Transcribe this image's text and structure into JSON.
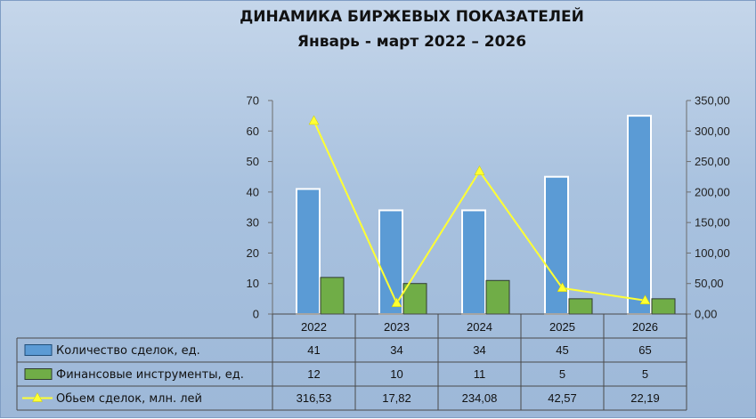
{
  "chart_data": {
    "type": "bar",
    "title": "ДИНАМИКА БИРЖЕВЫХ ПОКАЗАТЕЛЕЙ",
    "subtitle": "Январь -  март 2022 – 2026",
    "categories": [
      "2022",
      "2023",
      "2024",
      "2025",
      "2026"
    ],
    "y_left": {
      "min": 0,
      "max": 70,
      "ticks": [
        "0",
        "10",
        "20",
        "30",
        "40",
        "50",
        "60",
        "70"
      ]
    },
    "y_right": {
      "min": 0,
      "max": 350,
      "ticks": [
        "0,00",
        "50,00",
        "100,00",
        "150,00",
        "200,00",
        "250,00",
        "300,00",
        "350,00"
      ]
    },
    "grid": false,
    "legend": "data-table",
    "series": [
      {
        "name": "Количество сделок, ед.",
        "type": "bar",
        "axis": "left",
        "color": "#5b9bd5",
        "values": [
          41,
          34,
          34,
          45,
          65
        ],
        "labels": [
          "41",
          "34",
          "34",
          "45",
          "65"
        ]
      },
      {
        "name": "Финансовые инструменты, ед.",
        "type": "bar",
        "axis": "left",
        "color": "#70ad47",
        "values": [
          12,
          10,
          11,
          5,
          5
        ],
        "labels": [
          "12",
          "10",
          "11",
          "5",
          "5"
        ]
      },
      {
        "name": "Обьем сделок, млн. лей",
        "type": "line",
        "axis": "right",
        "color": "#ffff33",
        "values": [
          316.53,
          17.82,
          234.08,
          42.57,
          22.19
        ],
        "labels": [
          "316,53",
          "17,82",
          "234,08",
          "42,57",
          "22,19"
        ]
      }
    ]
  }
}
